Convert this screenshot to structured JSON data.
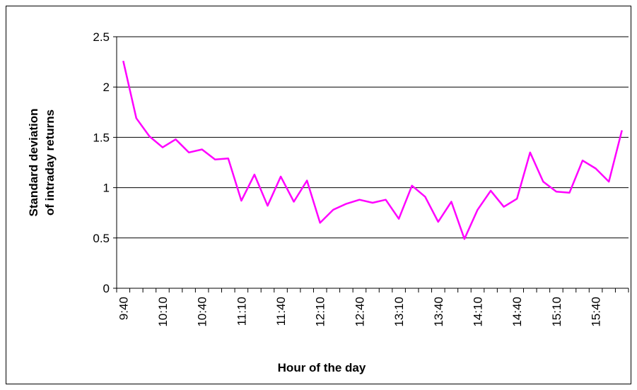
{
  "chart_data": {
    "type": "line",
    "x_label": "Hour of the day",
    "y_label": [
      "Standard deviation",
      "of intraday returns"
    ],
    "categories": [
      "9:40",
      null,
      null,
      "10:10",
      null,
      null,
      "10:40",
      null,
      null,
      "11:10",
      null,
      null,
      "11:40",
      null,
      null,
      "12:10",
      null,
      null,
      "12:40",
      null,
      null,
      "13:10",
      null,
      null,
      "13:40",
      null,
      null,
      "14:10",
      null,
      null,
      "14:40",
      null,
      null,
      "15:10",
      null,
      null,
      "15:40",
      null,
      null
    ],
    "series": [
      {
        "color": "#ff00ff",
        "values": [
          2.26,
          1.69,
          1.51,
          1.4,
          1.48,
          1.35,
          1.38,
          1.28,
          1.29,
          0.87,
          1.13,
          0.82,
          1.11,
          0.86,
          1.07,
          0.65,
          0.78,
          0.84,
          0.88,
          0.85,
          0.88,
          0.69,
          1.02,
          0.91,
          0.66,
          0.86,
          0.49,
          0.78,
          0.97,
          0.81,
          0.89,
          1.35,
          1.06,
          0.96,
          0.95,
          1.27,
          1.19,
          1.06,
          1.57
        ]
      }
    ],
    "ylim": [
      0,
      2.5
    ],
    "yticks": [
      0,
      0.5,
      1,
      1.5,
      2,
      2.5
    ],
    "grid": true
  }
}
